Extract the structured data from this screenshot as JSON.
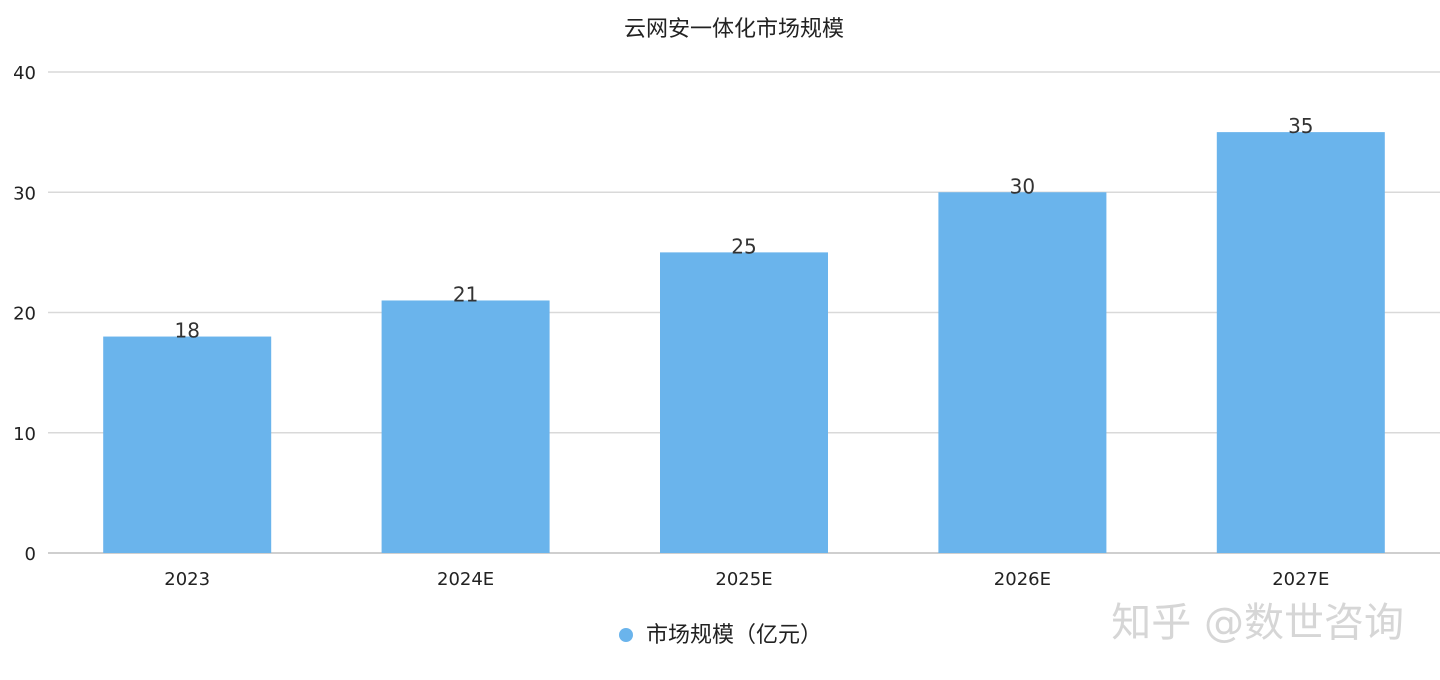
{
  "chart_data": {
    "type": "bar",
    "title": "云网安一体化市场规模",
    "categories": [
      "2023",
      "2024E",
      "2025E",
      "2026E",
      "2027E"
    ],
    "series": [
      {
        "name": "市场规模（亿元）",
        "values": [
          18,
          21,
          25,
          30,
          35
        ],
        "color": "#6ab4ec"
      }
    ],
    "ylim": [
      0,
      40
    ],
    "yticks": [
      0,
      10,
      20,
      30,
      40
    ],
    "grid": true,
    "legend": "bottom-center",
    "data_labels": true
  },
  "watermark": "知乎 @数世咨询"
}
